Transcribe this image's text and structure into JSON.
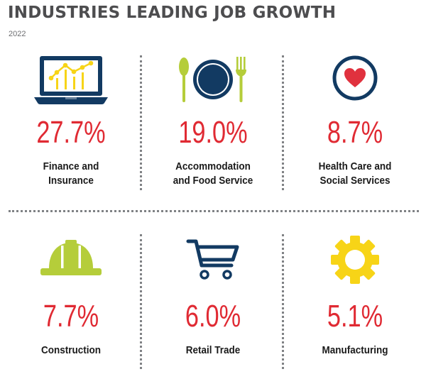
{
  "header": {
    "title": "INDUSTRIES LEADING JOB GROWTH",
    "year": "2022"
  },
  "colors": {
    "percent_red": "#e02a33",
    "navy": "#123a62",
    "lime": "#b5cd3a",
    "yellow": "#f7d417",
    "heart_red": "#e0313e",
    "title_gray": "#4d4d4f"
  },
  "chart_data": {
    "type": "table",
    "title": "INDUSTRIES LEADING JOB GROWTH",
    "subtitle": "2022",
    "categories": [
      "Finance and Insurance",
      "Accommodation and Food Service",
      "Health Care and Social Services",
      "Construction",
      "Retail Trade",
      "Manufacturing"
    ],
    "values": [
      27.7,
      19.0,
      8.7,
      7.7,
      6.0,
      5.1
    ],
    "unit": "%"
  },
  "cards": [
    {
      "icon": "laptop-chart-icon",
      "value": "27.7%",
      "label_lines": [
        "Finance and",
        "Insurance"
      ]
    },
    {
      "icon": "plate-utensils-icon",
      "value": "19.0%",
      "label_lines": [
        "Accommodation",
        "and Food Service"
      ]
    },
    {
      "icon": "heart-icon",
      "value": "8.7%",
      "label_lines": [
        "Health Care and",
        "Social Services"
      ]
    },
    {
      "icon": "hard-hat-icon",
      "value": "7.7%",
      "label_lines": [
        "Construction"
      ]
    },
    {
      "icon": "shopping-cart-icon",
      "value": "6.0%",
      "label_lines": [
        "Retail Trade"
      ]
    },
    {
      "icon": "gear-icon",
      "value": "5.1%",
      "label_lines": [
        "Manufacturing"
      ]
    }
  ]
}
